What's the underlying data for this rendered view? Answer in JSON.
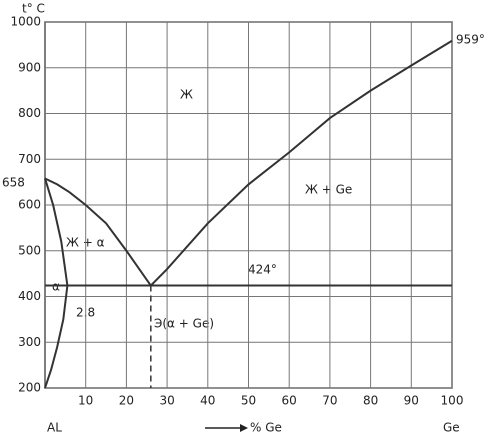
{
  "chart_data": {
    "type": "line",
    "ylabel": "t° C",
    "xlabel": "% Ge",
    "xlim": [
      0,
      100
    ],
    "ylim": [
      200,
      1000
    ],
    "xticks": [
      10,
      20,
      30,
      40,
      50,
      60,
      70,
      80,
      90,
      100
    ],
    "yticks": [
      200,
      300,
      400,
      500,
      600,
      700,
      800,
      900,
      1000
    ],
    "grid": true,
    "color": "#333333",
    "series": [
      {
        "x": [
          0,
          3,
          6,
          10,
          15,
          20,
          26
        ],
        "values": [
          658,
          645,
          628,
          600,
          560,
          500,
          424
        ]
      },
      {
        "x": [
          26,
          30,
          40,
          50,
          60,
          70,
          80,
          90,
          100
        ],
        "values": [
          424,
          460,
          560,
          645,
          715,
          790,
          850,
          905,
          959
        ]
      },
      {
        "x": [
          0,
          2,
          4,
          5.5,
          4.5,
          3,
          1.5,
          0
        ],
        "values": [
          658,
          600,
          520,
          424,
          350,
          290,
          240,
          200
        ]
      },
      {
        "x": [
          0,
          100
        ],
        "values": [
          424,
          424
        ]
      },
      {
        "x": [
          26,
          26
        ],
        "values": [
          424,
          200
        ],
        "dashed": true
      }
    ],
    "annotations": [
      "658",
      "Ж",
      "Ж + Ge",
      "Ж + α",
      "α",
      "2.8",
      "424°",
      "Э(α + Ge)",
      "959°",
      "AL",
      "Ge"
    ]
  }
}
